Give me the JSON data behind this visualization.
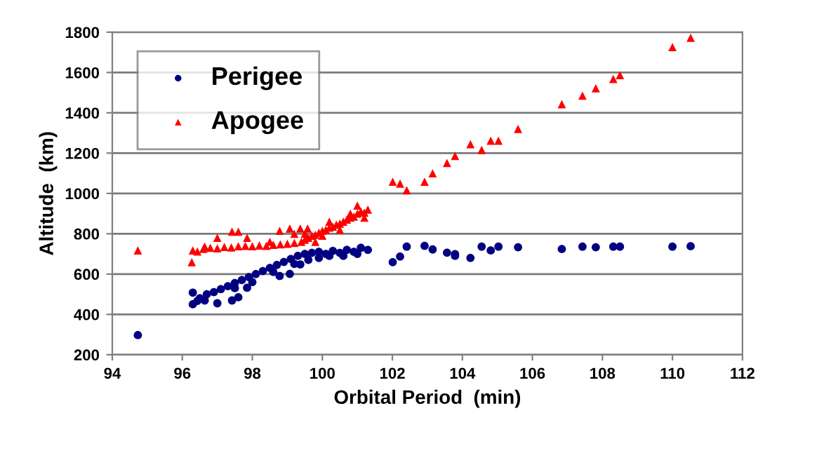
{
  "chart_data": {
    "type": "scatter",
    "xlabel": "Orbital Period  (min)",
    "ylabel": "Altitude  (km)",
    "xlim": [
      94,
      112
    ],
    "ylim": [
      200,
      1800
    ],
    "xticks": [
      94,
      96,
      98,
      100,
      102,
      104,
      106,
      108,
      110,
      112
    ],
    "yticks": [
      200,
      400,
      600,
      800,
      1000,
      1200,
      1400,
      1600,
      1800
    ],
    "grid": "y",
    "legend": "top left",
    "series": [
      {
        "name": "Perigee",
        "color": "#000080",
        "marker": "circle",
        "x": [
          94.73,
          96.3,
          96.3,
          96.43,
          96.64,
          97.0,
          97.42,
          97.6,
          97.85,
          98.78,
          99.07,
          99.37,
          96.5,
          96.7,
          96.9,
          97.1,
          97.3,
          97.5,
          97.7,
          97.9,
          98.1,
          98.3,
          98.5,
          98.7,
          98.9,
          99.1,
          99.3,
          99.5,
          99.7,
          99.9,
          100.1,
          100.3,
          100.5,
          100.7,
          100.9,
          101.1,
          101.3,
          99.6,
          99.9,
          100.2,
          100.6,
          101.0,
          97.5,
          98.0,
          98.6,
          99.2,
          102.01,
          102.22,
          102.41,
          102.92,
          103.15,
          103.56,
          103.79,
          103.79,
          104.23,
          104.55,
          104.81,
          105.03,
          105.59,
          106.84,
          107.43,
          107.81,
          108.31,
          108.5,
          110.0,
          110.52
        ],
        "values": [
          297,
          508,
          450,
          467,
          469,
          455,
          469,
          485,
          532,
          590,
          601,
          648,
          480,
          500,
          510,
          525,
          540,
          555,
          570,
          585,
          600,
          615,
          630,
          645,
          660,
          675,
          690,
          700,
          705,
          710,
          700,
          715,
          705,
          720,
          710,
          730,
          720,
          670,
          680,
          690,
          690,
          700,
          530,
          560,
          610,
          650,
          659,
          687,
          736,
          740,
          722,
          706,
          699,
          690,
          680,
          736,
          717,
          736,
          733,
          724,
          736,
          733,
          736,
          736,
          736,
          738
        ]
      },
      {
        "name": "Apogee",
        "color": "#ff0000",
        "marker": "triangle",
        "x": [
          94.73,
          96.27,
          96.3,
          96.43,
          96.64,
          97.0,
          97.42,
          97.6,
          97.85,
          98.78,
          99.07,
          99.37,
          99.58,
          96.6,
          96.8,
          97.0,
          97.2,
          97.4,
          97.6,
          97.8,
          98.0,
          98.2,
          98.4,
          98.6,
          98.8,
          99.0,
          99.2,
          99.4,
          99.5,
          99.6,
          99.7,
          99.8,
          99.9,
          100.0,
          100.1,
          100.2,
          100.3,
          100.4,
          100.5,
          100.6,
          100.7,
          100.8,
          100.9,
          101.0,
          101.1,
          101.2,
          101.3,
          99.5,
          99.8,
          100.0,
          100.2,
          100.5,
          100.8,
          101.0,
          101.2,
          99.2,
          98.5,
          102.01,
          102.22,
          102.41,
          102.92,
          103.15,
          103.56,
          103.79,
          104.23,
          104.55,
          104.81,
          105.03,
          105.59,
          106.84,
          107.43,
          107.81,
          108.31,
          108.5,
          110.0,
          110.52
        ],
        "values": [
          717,
          659,
          717,
          712,
          736,
          780,
          810,
          810,
          780,
          815,
          826,
          826,
          826,
          725,
          730,
          728,
          735,
          732,
          738,
          740,
          738,
          742,
          740,
          745,
          748,
          750,
          755,
          760,
          770,
          780,
          790,
          795,
          805,
          815,
          820,
          830,
          835,
          845,
          850,
          860,
          870,
          880,
          885,
          900,
          910,
          905,
          920,
          800,
          760,
          790,
          860,
          820,
          900,
          940,
          880,
          800,
          760,
          1058,
          1049,
          1016,
          1058,
          1100,
          1151,
          1186,
          1244,
          1216,
          1262,
          1262,
          1320,
          1443,
          1485,
          1522,
          1568,
          1587,
          1726,
          1772
        ]
      }
    ]
  }
}
